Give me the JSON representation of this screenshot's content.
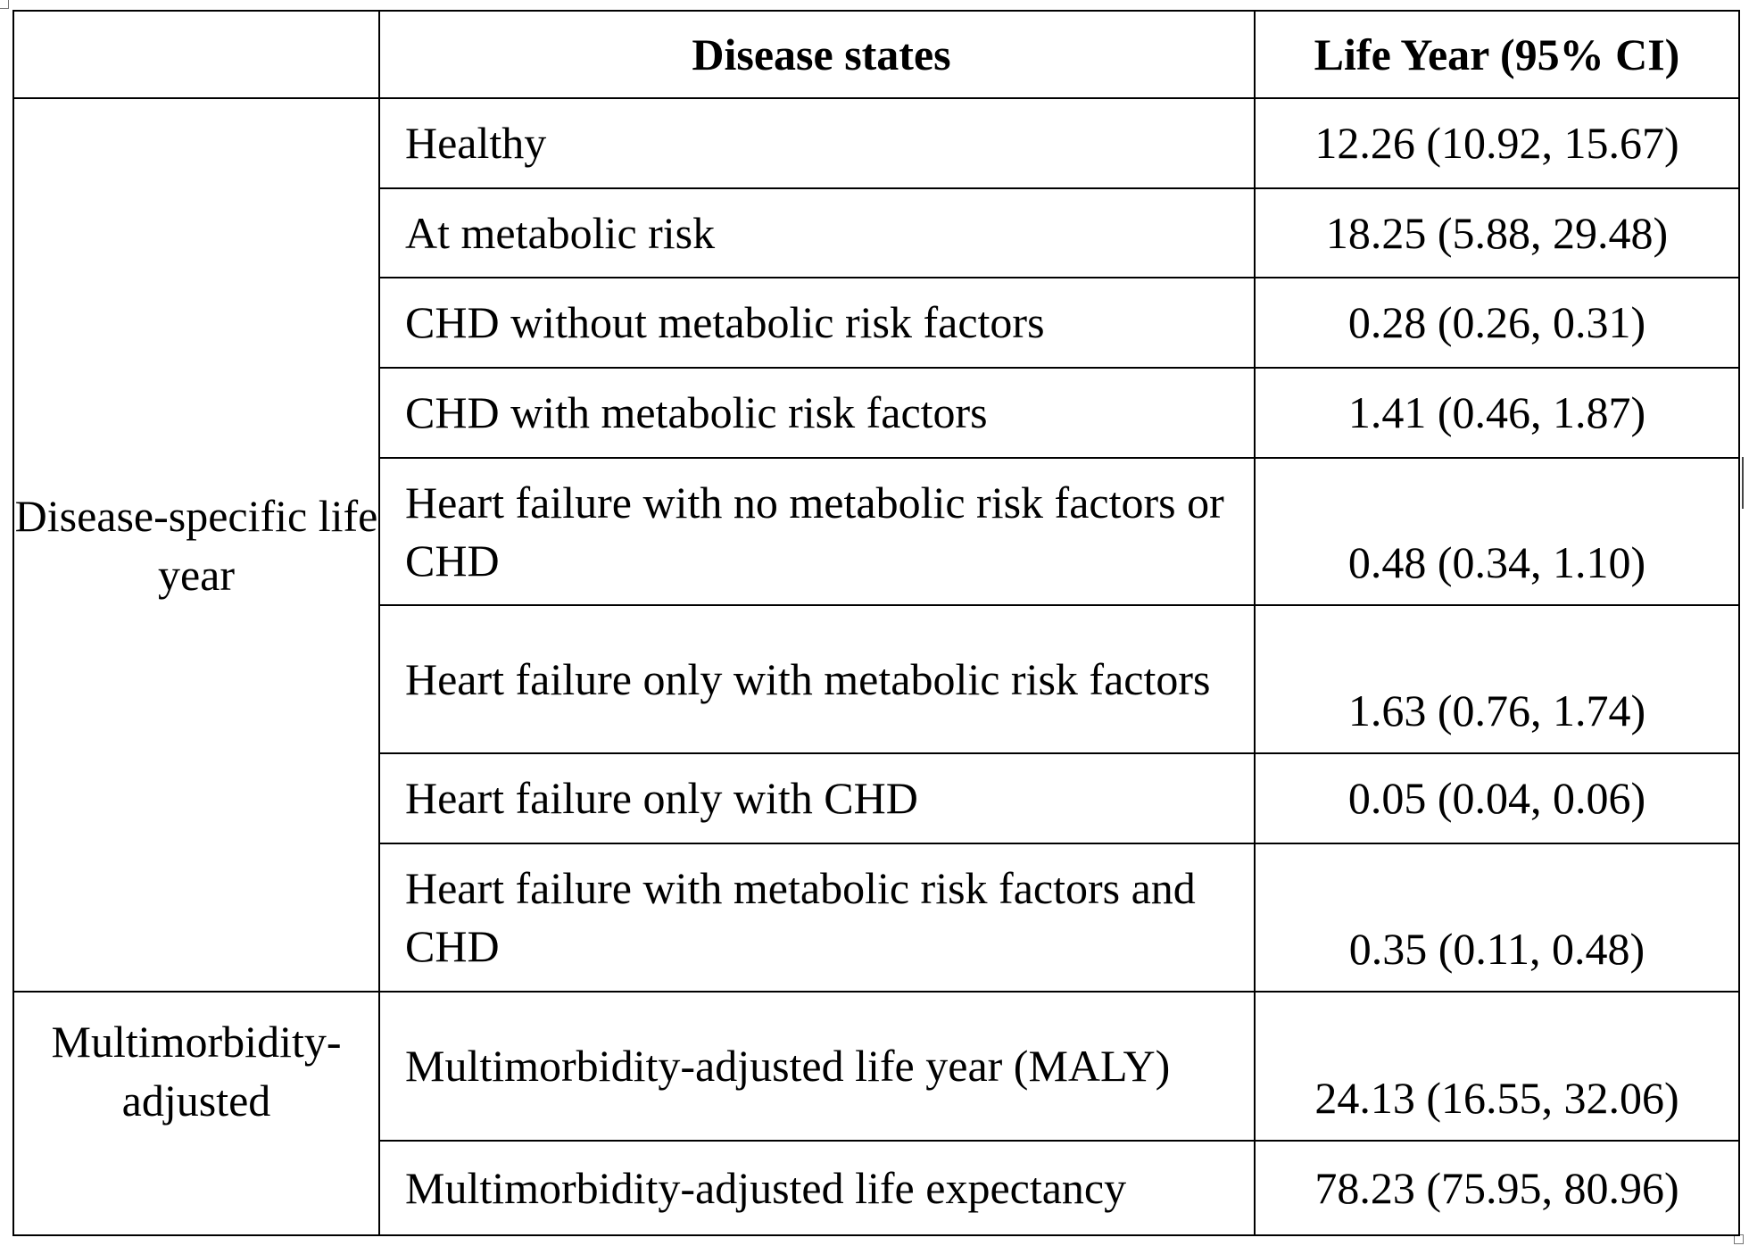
{
  "table": {
    "headers": {
      "group": "",
      "state": "Disease states",
      "value": "Life Year (95% CI)"
    },
    "groups": [
      {
        "label": "Disease-specific life year"
      },
      {
        "label": "Multimorbidity-adjusted"
      }
    ],
    "rows": [
      {
        "state": "Healthy",
        "value": "12.26 (10.92, 15.67)"
      },
      {
        "state": "At metabolic risk",
        "value": "18.25 (5.88, 29.48)"
      },
      {
        "state": "CHD without metabolic risk factors",
        "value": "0.28 (0.26, 0.31)"
      },
      {
        "state": "CHD with metabolic risk factors",
        "value": "1.41 (0.46, 1.87)"
      },
      {
        "state": "Heart failure with no metabolic risk factors or CHD",
        "value": "0.48 (0.34, 1.10)"
      },
      {
        "state": "Heart failure only with metabolic risk factors",
        "value": "1.63 (0.76, 1.74)"
      },
      {
        "state": "Heart failure only with CHD",
        "value": "0.05 (0.04, 0.06)"
      },
      {
        "state": "Heart failure with metabolic risk factors and CHD",
        "value": "0.35 (0.11, 0.48)"
      },
      {
        "state": "Multimorbidity-adjusted life year (MALY)",
        "value": "24.13 (16.55, 32.06)"
      },
      {
        "state": "Multimorbidity-adjusted life expectancy",
        "value": "78.23 (75.95, 80.96)"
      }
    ]
  }
}
